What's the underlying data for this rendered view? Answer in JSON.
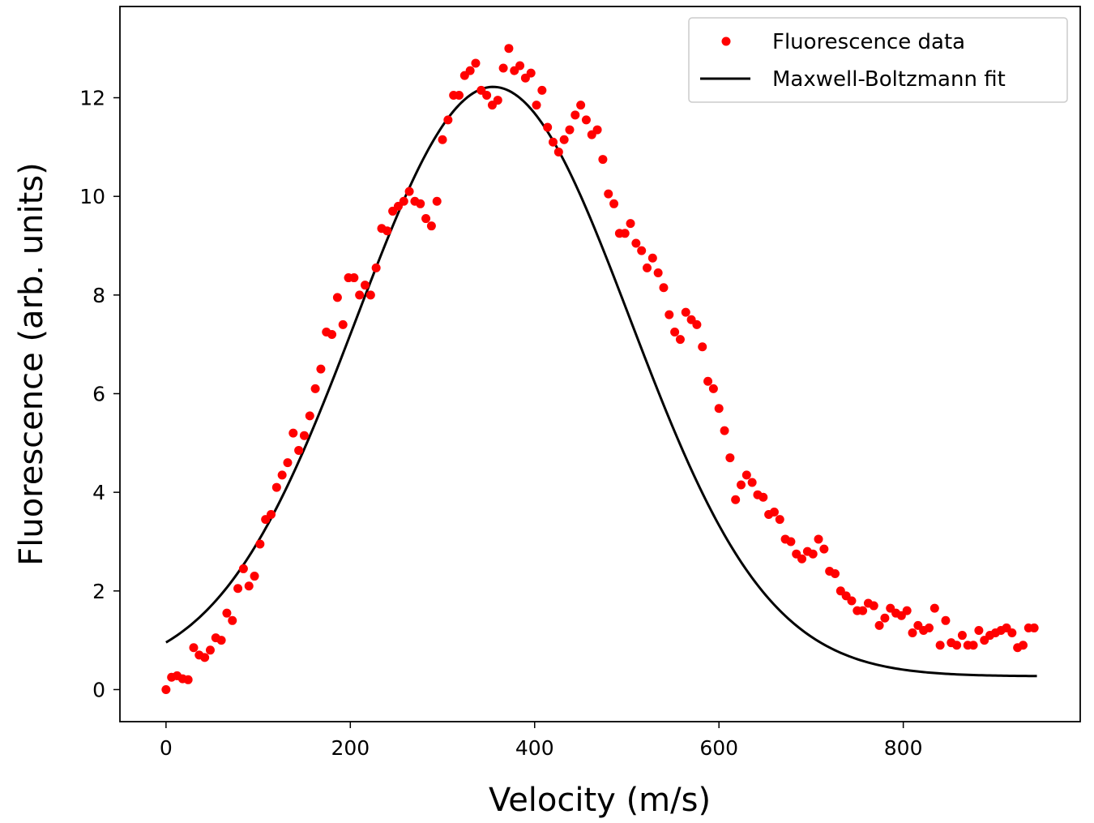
{
  "chart_data": {
    "type": "scatter",
    "title": "",
    "xlabel": "Velocity (m/s)",
    "ylabel": "Fluorescence (arb. units)",
    "xlim": [
      -50,
      992
    ],
    "ylim": [
      -0.65,
      13.85
    ],
    "xticks": [
      0,
      200,
      400,
      600,
      800
    ],
    "yticks": [
      0,
      2,
      4,
      6,
      8,
      10,
      12
    ],
    "grid": false,
    "legend_position": "top-right",
    "colors": {
      "data": "#ff0000",
      "fit": "#000000",
      "axes": "#000000"
    },
    "series": [
      {
        "name": "Fluorescence data",
        "kind": "scatter",
        "x": [
          0,
          6,
          12,
          18,
          24,
          30,
          36,
          42,
          48,
          54,
          60,
          66,
          72,
          78,
          84,
          90,
          96,
          102,
          108,
          114,
          120,
          126,
          132,
          138,
          144,
          150,
          156,
          162,
          168,
          174,
          180,
          186,
          192,
          198,
          204,
          210,
          216,
          222,
          228,
          234,
          240,
          246,
          252,
          258,
          264,
          270,
          276,
          282,
          288,
          294,
          300,
          306,
          312,
          318,
          324,
          330,
          336,
          342,
          348,
          354,
          360,
          366,
          372,
          378,
          384,
          390,
          396,
          402,
          408,
          414,
          420,
          426,
          432,
          438,
          444,
          450,
          456,
          462,
          468,
          474,
          480,
          486,
          492,
          498,
          504,
          510,
          516,
          522,
          528,
          534,
          540,
          546,
          552,
          558,
          564,
          570,
          576,
          582,
          588,
          594,
          600,
          606,
          612,
          618,
          624,
          630,
          636,
          642,
          648,
          654,
          660,
          666,
          672,
          678,
          684,
          690,
          696,
          702,
          708,
          714,
          720,
          726,
          732,
          738,
          744,
          750,
          756,
          762,
          768,
          774,
          780,
          786,
          792,
          798,
          804,
          810,
          816,
          822,
          828,
          834,
          840,
          846,
          852,
          858,
          864,
          870,
          876,
          882,
          888,
          894,
          900,
          906,
          912,
          918,
          924,
          930,
          936,
          942
        ],
        "y": [
          0.0,
          0.25,
          0.28,
          0.22,
          0.2,
          0.85,
          0.7,
          0.65,
          0.8,
          1.05,
          1.0,
          1.55,
          1.4,
          2.05,
          2.45,
          2.1,
          2.3,
          2.95,
          3.45,
          3.55,
          4.1,
          4.35,
          4.6,
          5.2,
          4.85,
          5.15,
          5.55,
          6.1,
          6.5,
          7.25,
          7.2,
          7.95,
          7.4,
          8.35,
          8.35,
          8.0,
          8.2,
          8.0,
          8.55,
          9.35,
          9.3,
          9.7,
          9.8,
          9.9,
          10.1,
          9.9,
          9.85,
          9.55,
          9.4,
          9.9,
          11.15,
          11.55,
          12.05,
          12.05,
          12.45,
          12.55,
          12.7,
          12.15,
          12.05,
          11.85,
          11.95,
          12.6,
          13.0,
          12.55,
          12.65,
          12.4,
          12.5,
          11.85,
          12.15,
          11.4,
          11.1,
          10.9,
          11.15,
          11.35,
          11.65,
          11.85,
          11.55,
          11.25,
          11.35,
          10.75,
          10.05,
          9.85,
          9.25,
          9.25,
          9.45,
          9.05,
          8.9,
          8.55,
          8.75,
          8.45,
          8.15,
          7.6,
          7.25,
          7.1,
          7.65,
          7.5,
          7.4,
          6.95,
          6.25,
          6.1,
          5.7,
          5.25,
          4.7,
          3.85,
          4.15,
          4.35,
          4.2,
          3.95,
          3.9,
          3.55,
          3.6,
          3.45,
          3.05,
          3.0,
          2.75,
          2.65,
          2.8,
          2.75,
          3.05,
          2.85,
          2.4,
          2.35,
          2.0,
          1.9,
          1.8,
          1.6,
          1.6,
          1.75,
          1.7,
          1.3,
          1.45,
          1.65,
          1.55,
          1.5,
          1.6,
          1.15,
          1.3,
          1.2,
          1.25,
          1.65,
          0.9,
          1.4,
          0.95,
          0.9,
          1.1,
          0.9,
          0.9,
          1.2,
          1.0,
          1.1,
          1.15,
          1.2,
          1.25,
          1.15,
          0.85,
          0.9,
          1.25,
          1.25
        ]
      },
      {
        "name": "Maxwell-Boltzmann fit",
        "kind": "line",
        "model": {
          "peak_velocity": 355,
          "amplitude": 11.95,
          "width": 210,
          "offset": 0.27
        },
        "x_range": [
          0,
          945
        ]
      }
    ]
  }
}
